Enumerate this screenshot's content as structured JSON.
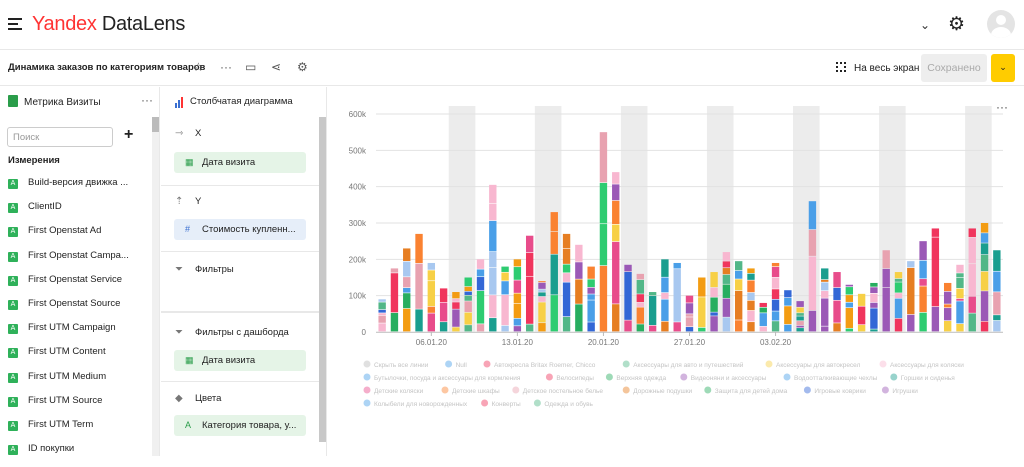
{
  "app": {
    "logo_yandex": "Yandex",
    "logo_product": "DataLens"
  },
  "header": {
    "chevron": "⌄",
    "gear": "⚙"
  },
  "toolbar": {
    "title": "Динамика заказов по категориям товаров",
    "fullscreen_label": "На весь экран",
    "save_label": "Сохранено",
    "save_dropdown": "⌄"
  },
  "dataset": {
    "name": "Метрика Визиты",
    "search_placeholder": "Поиск",
    "add": "+",
    "dimensions_title": "Измерения",
    "fields": [
      "Build-версия движка ...",
      "ClientID",
      "First Openstat Ad",
      "First Openstat Campa...",
      "First Openstat Service",
      "First Openstat Source",
      "First UTM Campaign",
      "First UTM Content",
      "First UTM Medium",
      "First UTM Source",
      "First UTM Term",
      "ID покупки"
    ]
  },
  "wizard": {
    "visualization": "Столбчатая диаграмма",
    "x_label": "X",
    "x_field": "Дата визита",
    "y_label": "Y",
    "y_field": "Стоимость купленн...",
    "filters_label": "Фильтры",
    "dash_filters_label": "Фильтры с дашборда",
    "dash_filters_field": "Дата визита",
    "colors_label": "Цвета",
    "colors_field": "Категория товара, у..."
  },
  "chart_data": {
    "type": "bar",
    "stacked": true,
    "y_ticks": [
      "0",
      "100k",
      "200k",
      "300k",
      "400k",
      "500k",
      "600k"
    ],
    "ylim": [
      0,
      600000
    ],
    "x_ticks": [
      "06.01.20",
      "13.01.20",
      "20.01.20",
      "27.01.20",
      "03.02.20"
    ],
    "grid": true,
    "legend_placement": "bottom",
    "totals": [
      90000,
      175000,
      230000,
      270000,
      190000,
      120000,
      110000,
      150000,
      200000,
      405000,
      180000,
      200000,
      265000,
      140000,
      330000,
      270000,
      240000,
      180000,
      550000,
      440000,
      185000,
      160000,
      110000,
      200000,
      190000,
      100000,
      150000,
      165000,
      220000,
      195000,
      175000,
      80000,
      190000,
      115000,
      85000,
      360000,
      175000,
      165000,
      130000,
      105000,
      135000,
      225000,
      165000,
      195000,
      250000,
      285000,
      135000,
      185000,
      285000,
      300000,
      225000
    ],
    "legend_entries": [
      "Скрыть все линии",
      "Null",
      "Автокресла Britax Roemer, Chicco",
      "Аксессуары для авто и путешествий",
      "Аксессуары для автокресел",
      "Аксессуары для коляски",
      "Бутылочки, посуда и аксессуары для кормления",
      "Велосипеды",
      "Верхняя одежда",
      "Видеоняни и аксессуары",
      "Водоотталкивающие чехлы",
      "Горшки и сиденья",
      "Детские коляски",
      "Детские шкафы",
      "Детское постельное белье",
      "Дорожные подушки",
      "Защита для детей дома",
      "Игровые коврики",
      "Игрушки",
      "Колыбели для новорожденных",
      "Конверты",
      "Одежда и обувь"
    ]
  }
}
